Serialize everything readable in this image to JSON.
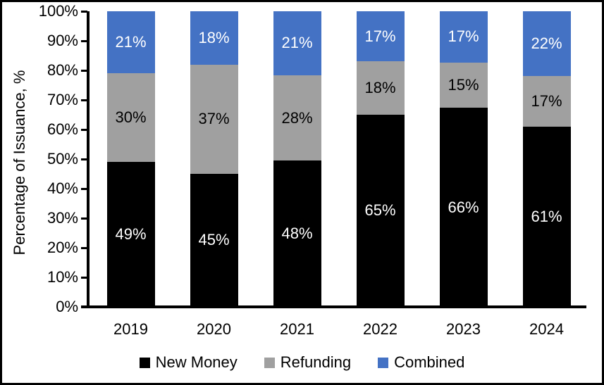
{
  "chart_data": {
    "type": "bar",
    "variant": "stacked-100",
    "title": "",
    "xlabel": "",
    "ylabel": "Percentage of Issuance, %",
    "categories": [
      "2019",
      "2020",
      "2021",
      "2022",
      "2023",
      "2024"
    ],
    "series": [
      {
        "name": "New Money",
        "color": "#000000",
        "label_color": "#ffffff",
        "values": [
          49,
          45,
          48,
          65,
          66,
          61
        ]
      },
      {
        "name": "Refunding",
        "color": "#A0A0A0",
        "label_color": "#000000",
        "values": [
          30,
          37,
          28,
          18,
          15,
          17
        ]
      },
      {
        "name": "Combined",
        "color": "#4472C4",
        "label_color": "#ffffff",
        "values": [
          21,
          18,
          21,
          17,
          17,
          22
        ]
      }
    ],
    "bar_label_suffix": "%",
    "y_ticks": [
      "0%",
      "10%",
      "20%",
      "30%",
      "40%",
      "50%",
      "60%",
      "70%",
      "80%",
      "90%",
      "100%"
    ],
    "ylim": [
      0,
      100
    ],
    "grid": false,
    "legend_position": "bottom",
    "axis_color": "#000000",
    "background_color": "#ffffff"
  }
}
